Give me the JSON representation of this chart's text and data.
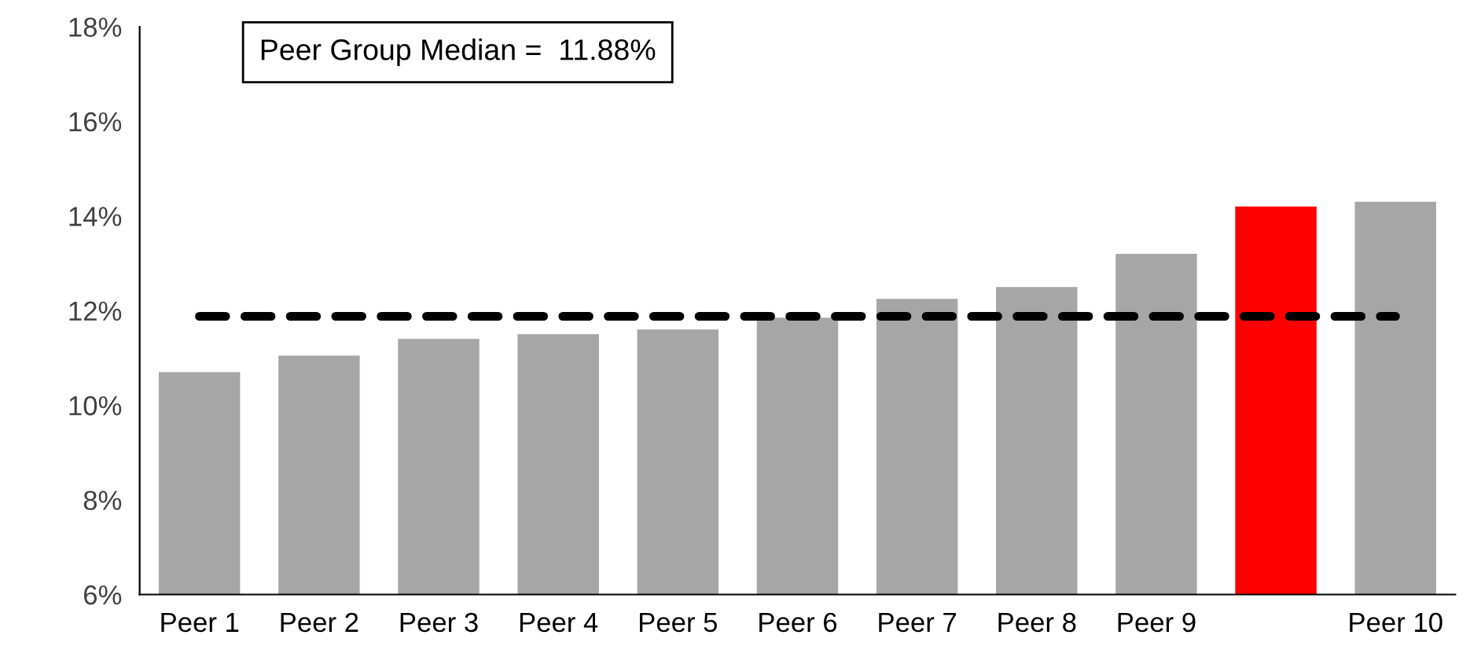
{
  "chart_data": {
    "type": "bar",
    "categories": [
      "Peer 1",
      "Peer 2",
      "Peer 3",
      "Peer 4",
      "Peer 5",
      "Peer 6",
      "Peer 7",
      "Peer 8",
      "Peer 9",
      null,
      "Peer 10"
    ],
    "values": [
      10.7,
      11.05,
      11.4,
      11.5,
      11.6,
      11.85,
      12.25,
      12.5,
      13.2,
      14.2,
      14.3
    ],
    "colors": [
      "#a6a6a6",
      "#a6a6a6",
      "#a6a6a6",
      "#a6a6a6",
      "#a6a6a6",
      "#a6a6a6",
      "#a6a6a6",
      "#a6a6a6",
      "#a6a6a6",
      "#ff0000",
      "#a6a6a6"
    ],
    "ylim": [
      6,
      18
    ],
    "yticks": [
      {
        "value": 6,
        "label": "6%"
      },
      {
        "value": 8,
        "label": "8%"
      },
      {
        "value": 10,
        "label": "10%"
      },
      {
        "value": 12,
        "label": "12%"
      },
      {
        "value": 14,
        "label": "14%"
      },
      {
        "value": 16,
        "label": "16%"
      },
      {
        "value": 18,
        "label": "18%"
      }
    ],
    "ref_lines": [
      {
        "axis": "y",
        "value": 11.88,
        "label": "Peer Group Median =  11.88%",
        "color": "#000000",
        "line_style": "dashed"
      }
    ],
    "grid": false,
    "legend": false
  }
}
